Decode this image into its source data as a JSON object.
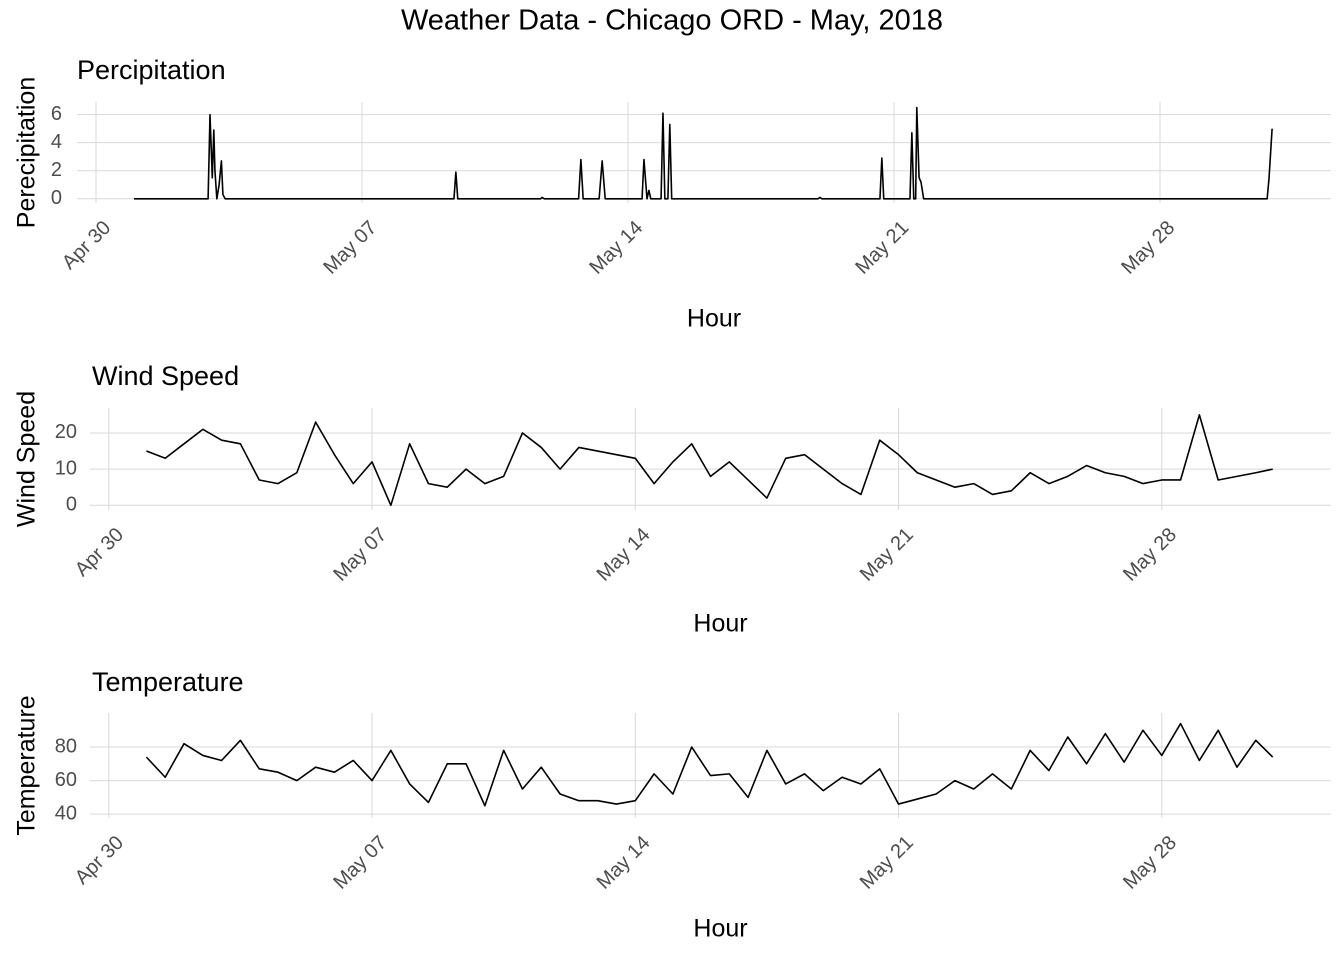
{
  "title": "Weather Data - Chicago ORD - May, 2018",
  "chart_data": [
    {
      "type": "line",
      "title": "Percipitation",
      "ylabel": "Perecipitation",
      "xlabel": "Hour",
      "color": "#000000",
      "grid": true,
      "x": [
        1.0,
        2.95,
        3.0,
        3.06,
        3.1,
        3.13,
        3.18,
        3.24,
        3.3,
        3.34,
        3.4,
        9.42,
        9.47,
        9.52,
        11.7,
        11.74,
        11.8,
        12.7,
        12.76,
        12.82,
        13.24,
        13.32,
        13.4,
        14.37,
        14.42,
        14.5,
        14.55,
        14.6,
        14.87,
        14.92,
        14.97,
        15.05,
        15.1,
        15.15,
        19.0,
        19.05,
        19.1,
        20.63,
        20.68,
        20.73,
        21.42,
        21.47,
        21.52,
        21.57,
        21.6,
        21.66,
        21.71,
        21.78,
        30.82,
        30.87,
        30.95
      ],
      "values": [
        0,
        0,
        6.0,
        1.5,
        4.9,
        2.0,
        0,
        1.0,
        2.7,
        0.3,
        0,
        0,
        1.9,
        0,
        0,
        0.1,
        0,
        0,
        2.8,
        0,
        0,
        2.7,
        0,
        0,
        2.8,
        0,
        0.6,
        0,
        0,
        6.1,
        0,
        0,
        5.3,
        0,
        0,
        0.1,
        0,
        0,
        2.9,
        0,
        0,
        4.7,
        0,
        0,
        6.5,
        1.5,
        1.2,
        0,
        0,
        1.5,
        5.0
      ],
      "xlim": [
        -0.5,
        32.5
      ],
      "ylim": [
        -0.3,
        6.9
      ],
      "xticks": [
        {
          "value": 0,
          "label": "Apr 30"
        },
        {
          "value": 7,
          "label": "May 07"
        },
        {
          "value": 14,
          "label": "May 14"
        },
        {
          "value": 21,
          "label": "May 21"
        },
        {
          "value": 28,
          "label": "May 28"
        }
      ],
      "yticks": [
        0,
        2,
        4,
        6
      ]
    },
    {
      "type": "line",
      "title": "Wind Speed",
      "ylabel": "Wind Speed",
      "xlabel": "Hour",
      "color": "#000000",
      "grid": true,
      "x": [
        1.0,
        1.5,
        2.0,
        2.5,
        3.0,
        3.5,
        4.0,
        4.5,
        5.0,
        5.5,
        6.0,
        6.5,
        7.0,
        7.5,
        8.0,
        8.5,
        9.0,
        9.5,
        10.0,
        10.5,
        11.0,
        11.5,
        12.0,
        12.5,
        13.0,
        13.5,
        14.0,
        14.5,
        15.0,
        15.5,
        16.0,
        16.5,
        17.0,
        17.5,
        18.0,
        18.5,
        19.0,
        19.5,
        20.0,
        20.5,
        21.0,
        21.5,
        22.0,
        22.5,
        23.0,
        23.5,
        24.0,
        24.5,
        25.0,
        25.5,
        26.0,
        26.5,
        27.0,
        27.5,
        28.0,
        28.5,
        29.0,
        29.5,
        30.0,
        30.5,
        30.95
      ],
      "values": [
        15,
        13,
        17,
        21,
        18,
        17,
        7,
        6,
        9,
        23,
        14,
        6,
        12,
        0,
        17,
        6,
        5,
        10,
        6,
        8,
        20,
        16,
        10,
        16,
        15,
        14,
        13,
        6,
        12,
        17,
        8,
        12,
        7,
        2,
        13,
        14,
        10,
        6,
        3,
        18,
        14,
        9,
        7,
        5,
        6,
        3,
        4,
        9,
        6,
        8,
        11,
        9,
        8,
        6,
        7,
        7,
        25,
        7,
        8,
        9,
        10
      ],
      "xlim": [
        -0.5,
        32.5
      ],
      "ylim": [
        -1.3,
        26.9
      ],
      "xticks": [
        {
          "value": 0,
          "label": "Apr 30"
        },
        {
          "value": 7,
          "label": "May 07"
        },
        {
          "value": 14,
          "label": "May 14"
        },
        {
          "value": 21,
          "label": "May 21"
        },
        {
          "value": 28,
          "label": "May 28"
        }
      ],
      "yticks": [
        0,
        10,
        20
      ]
    },
    {
      "type": "line",
      "title": "Temperature",
      "ylabel": "Temperature",
      "xlabel": "Hour",
      "color": "#000000",
      "grid": true,
      "x": [
        1.0,
        1.5,
        2.0,
        2.5,
        3.0,
        3.5,
        4.0,
        4.5,
        5.0,
        5.5,
        6.0,
        6.5,
        7.0,
        7.5,
        8.0,
        8.5,
        9.0,
        9.5,
        10.0,
        10.5,
        11.0,
        11.5,
        12.0,
        12.5,
        13.0,
        13.5,
        14.0,
        14.5,
        15.0,
        15.5,
        16.0,
        16.5,
        17.0,
        17.5,
        18.0,
        18.5,
        19.0,
        19.5,
        20.0,
        20.5,
        21.0,
        21.5,
        22.0,
        22.5,
        23.0,
        23.5,
        24.0,
        24.5,
        25.0,
        25.5,
        26.0,
        26.5,
        27.0,
        27.5,
        28.0,
        28.5,
        29.0,
        29.5,
        30.0,
        30.5,
        30.95
      ],
      "values": [
        74,
        62,
        82,
        75,
        72,
        84,
        67,
        65,
        60,
        68,
        65,
        72,
        60,
        78,
        58,
        47,
        70,
        70,
        45,
        78,
        55,
        68,
        52,
        48,
        48,
        46,
        48,
        64,
        52,
        80,
        63,
        64,
        50,
        78,
        58,
        64,
        54,
        62,
        58,
        67,
        46,
        49,
        52,
        60,
        55,
        64,
        55,
        78,
        66,
        86,
        70,
        88,
        71,
        90,
        75,
        94,
        72,
        90,
        68,
        84,
        74
      ],
      "xlim": [
        -0.5,
        32.5
      ],
      "ylim": [
        37.7,
        100.3
      ],
      "xticks": [
        {
          "value": 0,
          "label": "Apr 30"
        },
        {
          "value": 7,
          "label": "May 07"
        },
        {
          "value": 14,
          "label": "May 14"
        },
        {
          "value": 21,
          "label": "May 21"
        },
        {
          "value": 28,
          "label": "May 28"
        }
      ],
      "yticks": [
        40,
        60,
        80
      ]
    }
  ]
}
